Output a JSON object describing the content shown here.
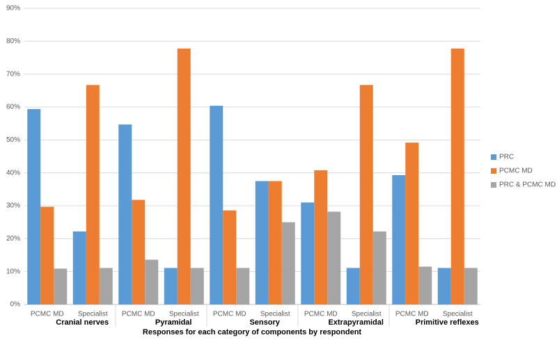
{
  "chart_data": {
    "type": "bar",
    "categories": [
      "PCMC MD",
      "Specialist",
      "PCMC MD",
      "Specialist",
      "PCMC MD",
      "Specialist",
      "PCMC MD",
      "Specialist",
      "PCMC MD",
      "Specialist"
    ],
    "groups": [
      "Cranial nerves",
      "Pyramidal",
      "Sensory",
      "Extrapyramidal",
      "Primitive reflexes"
    ],
    "x_label": "Responses for each category of components by respondent",
    "series": [
      {
        "name": "PRC",
        "color": "#5b9bd5",
        "values": [
          59.4,
          22.2,
          54.7,
          11.1,
          60.4,
          37.5,
          31.0,
          11.1,
          39.3,
          11.1
        ]
      },
      {
        "name": "PCMC MD",
        "color": "#ed7d31",
        "values": [
          29.7,
          66.7,
          31.8,
          77.8,
          28.6,
          37.5,
          40.8,
          66.7,
          49.2,
          77.8
        ]
      },
      {
        "name": "PRC & PCMC MD",
        "color": "#a5a5a5",
        "values": [
          10.9,
          11.1,
          13.6,
          11.1,
          11.1,
          25.0,
          28.2,
          22.2,
          11.5,
          11.1
        ]
      }
    ],
    "ylim": [
      0,
      90
    ],
    "yticks": [
      {
        "value": 0,
        "label": "0%"
      },
      {
        "value": 10,
        "label": "10%"
      },
      {
        "value": 20,
        "label": "20%"
      },
      {
        "value": 30,
        "label": "30%"
      },
      {
        "value": 40,
        "label": "40%"
      },
      {
        "value": 50,
        "label": "50%"
      },
      {
        "value": 60,
        "label": "60%"
      },
      {
        "value": 70,
        "label": "70%"
      },
      {
        "value": 80,
        "label": "80%"
      },
      {
        "value": 90,
        "label": "90%"
      }
    ],
    "grid": true,
    "legend": "right"
  }
}
